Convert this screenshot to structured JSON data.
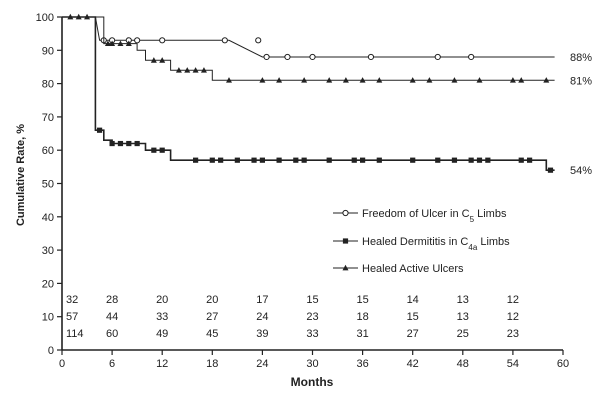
{
  "chart_data": {
    "type": "line",
    "xlabel": "Months",
    "ylabel": "Cumulative Rate, %",
    "xlim": [
      0,
      60
    ],
    "ylim": [
      0,
      100
    ],
    "x_ticks": [
      0,
      6,
      12,
      18,
      24,
      30,
      36,
      42,
      48,
      54,
      60
    ],
    "y_ticks": [
      0,
      10,
      20,
      30,
      40,
      50,
      60,
      70,
      80,
      90,
      100
    ],
    "grid": false,
    "legend_position": "center-right",
    "series": [
      {
        "name": "Freedom of Ulcer in C",
        "name_sub": "5",
        "name_suffix": " Limbs",
        "marker": "open-circle",
        "end_label": "88%",
        "steps": [
          [
            0,
            100
          ],
          [
            4,
            100
          ],
          [
            4.5,
            93
          ],
          [
            12,
            93
          ],
          [
            20,
            93
          ],
          [
            24,
            88
          ],
          [
            59,
            88
          ]
        ],
        "markers": [
          [
            5,
            93
          ],
          [
            6,
            93
          ],
          [
            8,
            93
          ],
          [
            9,
            93
          ],
          [
            12,
            93
          ],
          [
            19.5,
            93
          ],
          [
            23.5,
            93
          ],
          [
            24.5,
            88
          ],
          [
            27,
            88
          ],
          [
            30,
            88
          ],
          [
            37,
            88
          ],
          [
            45,
            88
          ],
          [
            49,
            88
          ]
        ]
      },
      {
        "name": "Healed Dermititis in C",
        "name_sub": "4a",
        "name_suffix": " Limbs",
        "marker": "filled-square",
        "end_label": "54%",
        "steps": [
          [
            0,
            100
          ],
          [
            4,
            100
          ],
          [
            4,
            66
          ],
          [
            5,
            66
          ],
          [
            5,
            63
          ],
          [
            6,
            63
          ],
          [
            6,
            62
          ],
          [
            10,
            62
          ],
          [
            10,
            60
          ],
          [
            13,
            60
          ],
          [
            13,
            57
          ],
          [
            58,
            57
          ],
          [
            58,
            54
          ],
          [
            59,
            54
          ]
        ],
        "markers": [
          [
            4.5,
            66
          ],
          [
            6,
            62
          ],
          [
            7,
            62
          ],
          [
            8,
            62
          ],
          [
            9,
            62
          ],
          [
            11,
            60
          ],
          [
            12,
            60
          ],
          [
            16,
            57
          ],
          [
            18,
            57
          ],
          [
            19,
            57
          ],
          [
            21,
            57
          ],
          [
            23,
            57
          ],
          [
            24,
            57
          ],
          [
            26,
            57
          ],
          [
            28,
            57
          ],
          [
            29,
            57
          ],
          [
            32,
            57
          ],
          [
            35,
            57
          ],
          [
            36,
            57
          ],
          [
            38,
            57
          ],
          [
            42,
            57
          ],
          [
            45,
            57
          ],
          [
            47,
            57
          ],
          [
            49,
            57
          ],
          [
            50,
            57
          ],
          [
            51,
            57
          ],
          [
            55,
            57
          ],
          [
            56,
            57
          ],
          [
            58.5,
            54
          ]
        ]
      },
      {
        "name": "Healed Active Ulcers",
        "name_sub": "",
        "name_suffix": "",
        "marker": "filled-triangle",
        "end_label": "81%",
        "steps": [
          [
            0,
            100
          ],
          [
            5,
            100
          ],
          [
            5,
            92
          ],
          [
            9,
            92
          ],
          [
            9,
            90
          ],
          [
            10,
            90
          ],
          [
            10,
            87
          ],
          [
            13,
            87
          ],
          [
            13,
            84
          ],
          [
            18,
            84
          ],
          [
            18,
            81
          ],
          [
            59,
            81
          ]
        ],
        "markers": [
          [
            1,
            100
          ],
          [
            2,
            100
          ],
          [
            3,
            100
          ],
          [
            5.5,
            92
          ],
          [
            6,
            92
          ],
          [
            7,
            92
          ],
          [
            8,
            92
          ],
          [
            11,
            87
          ],
          [
            12,
            87
          ],
          [
            14,
            84
          ],
          [
            15,
            84
          ],
          [
            16,
            84
          ],
          [
            17,
            84
          ],
          [
            20,
            81
          ],
          [
            24,
            81
          ],
          [
            26,
            81
          ],
          [
            29,
            81
          ],
          [
            32,
            81
          ],
          [
            34,
            81
          ],
          [
            36,
            81
          ],
          [
            38,
            81
          ],
          [
            42,
            81
          ],
          [
            44,
            81
          ],
          [
            47,
            81
          ],
          [
            50,
            81
          ],
          [
            54,
            81
          ],
          [
            55,
            81
          ],
          [
            58,
            81
          ]
        ]
      }
    ],
    "at_risk": {
      "x": [
        0,
        6,
        12,
        18,
        24,
        30,
        36,
        42,
        48,
        54
      ],
      "rows": [
        [
          "32",
          "28",
          "20",
          "20",
          "17",
          "15",
          "15",
          "14",
          "13",
          "12"
        ],
        [
          "57",
          "44",
          "33",
          "27",
          "24",
          "23",
          "18",
          "15",
          "13",
          "12"
        ],
        [
          "114",
          "60",
          "49",
          "45",
          "39",
          "33",
          "31",
          "27",
          "25",
          "23"
        ]
      ]
    }
  }
}
